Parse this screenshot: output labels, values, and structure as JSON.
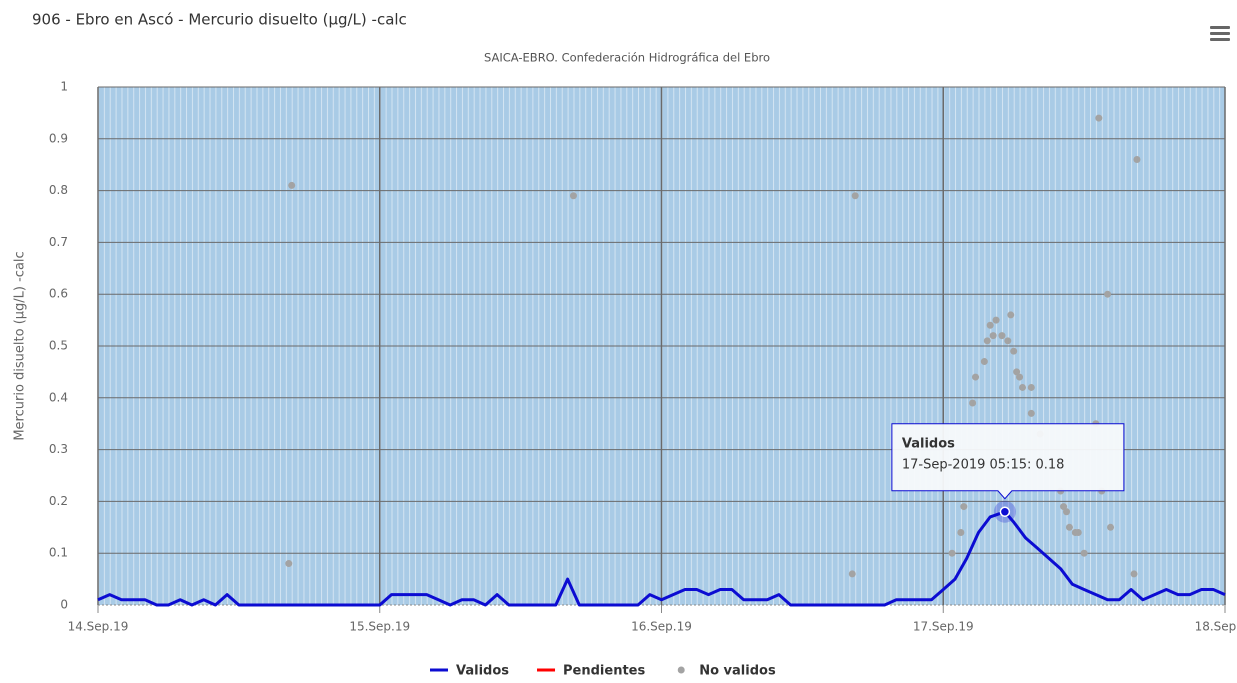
{
  "chart_data": {
    "type": "line",
    "title": "906 - Ebro en Ascó - Mercurio disuelto (µg/L) -calc",
    "subtitle": "SAICA-EBRO. Confederación Hidrográfica del Ebro",
    "y_label": "Mercurio disuelto (µg/L) -calc",
    "xlim": [
      "14-Sep-2019 00:00",
      "18-Sep-2019 00:00"
    ],
    "xticks": [
      {
        "value": "14-Sep-2019 00:00",
        "label": "14.Sep.19"
      },
      {
        "value": "15-Sep-2019 00:00",
        "label": "15.Sep.19"
      },
      {
        "value": "16-Sep-2019 00:00",
        "label": "16.Sep.19"
      },
      {
        "value": "17-Sep-2019 00:00",
        "label": "17.Sep.19"
      },
      {
        "value": "18-Sep-2019 00:00",
        "label": "18.Sep.19"
      }
    ],
    "ylim": [
      0,
      1
    ],
    "yticks": [
      0,
      0.1,
      0.2,
      0.3,
      0.4,
      0.5,
      0.6,
      0.7,
      0.8,
      0.9,
      1
    ],
    "grid": true,
    "legend": "bottom",
    "series": [
      {
        "name": "Validos",
        "type": "line",
        "color": "#0c0cd2",
        "x": [
          "14-Sep-2019 00:00",
          "14-Sep-2019 01:00",
          "14-Sep-2019 02:00",
          "14-Sep-2019 03:00",
          "14-Sep-2019 04:00",
          "14-Sep-2019 05:00",
          "14-Sep-2019 06:00",
          "14-Sep-2019 07:00",
          "14-Sep-2019 08:00",
          "14-Sep-2019 09:00",
          "14-Sep-2019 10:00",
          "14-Sep-2019 11:00",
          "14-Sep-2019 12:00",
          "15-Sep-2019 00:00",
          "15-Sep-2019 01:00",
          "15-Sep-2019 02:00",
          "15-Sep-2019 03:00",
          "15-Sep-2019 04:00",
          "15-Sep-2019 05:00",
          "15-Sep-2019 06:00",
          "15-Sep-2019 07:00",
          "15-Sep-2019 08:00",
          "15-Sep-2019 09:00",
          "15-Sep-2019 10:00",
          "15-Sep-2019 11:00",
          "15-Sep-2019 15:00",
          "15-Sep-2019 16:00",
          "15-Sep-2019 17:00",
          "15-Sep-2019 22:00",
          "15-Sep-2019 23:00",
          "16-Sep-2019 00:00",
          "16-Sep-2019 01:00",
          "16-Sep-2019 02:00",
          "16-Sep-2019 03:00",
          "16-Sep-2019 04:00",
          "16-Sep-2019 05:00",
          "16-Sep-2019 06:00",
          "16-Sep-2019 07:00",
          "16-Sep-2019 08:00",
          "16-Sep-2019 09:00",
          "16-Sep-2019 10:00",
          "16-Sep-2019 11:00",
          "16-Sep-2019 19:00",
          "16-Sep-2019 20:00",
          "16-Sep-2019 21:00",
          "16-Sep-2019 22:00",
          "16-Sep-2019 23:00",
          "17-Sep-2019 00:00",
          "17-Sep-2019 01:00",
          "17-Sep-2019 02:00",
          "17-Sep-2019 03:00",
          "17-Sep-2019 04:00",
          "17-Sep-2019 05:15",
          "17-Sep-2019 06:00",
          "17-Sep-2019 07:00",
          "17-Sep-2019 08:00",
          "17-Sep-2019 09:00",
          "17-Sep-2019 10:00",
          "17-Sep-2019 11:00",
          "17-Sep-2019 12:00",
          "17-Sep-2019 13:00",
          "17-Sep-2019 14:00",
          "17-Sep-2019 15:00",
          "17-Sep-2019 16:00",
          "17-Sep-2019 17:00",
          "17-Sep-2019 18:00",
          "17-Sep-2019 19:00",
          "17-Sep-2019 20:00",
          "17-Sep-2019 21:00",
          "17-Sep-2019 22:00",
          "17-Sep-2019 23:00",
          "18-Sep-2019 00:00"
        ],
        "values": [
          0.01,
          0.02,
          0.01,
          0.01,
          0.01,
          0,
          0,
          0.01,
          0,
          0.01,
          0,
          0.02,
          0,
          0,
          0.02,
          0.02,
          0.02,
          0.02,
          0.01,
          0,
          0.01,
          0.01,
          0,
          0.02,
          0,
          0,
          0.05,
          0,
          0,
          0.02,
          0.01,
          0.02,
          0.03,
          0.03,
          0.02,
          0.03,
          0.03,
          0.01,
          0.01,
          0.01,
          0.02,
          0,
          0,
          0.01,
          0.01,
          0.01,
          0.01,
          0.03,
          0.05,
          0.09,
          0.14,
          0.17,
          0.18,
          0.16,
          0.13,
          0.11,
          0.09,
          0.07,
          0.04,
          0.03,
          0.02,
          0.01,
          0.01,
          0.03,
          0.01,
          0.02,
          0.03,
          0.02,
          0.02,
          0.03,
          0.03,
          0.02
        ]
      },
      {
        "name": "Pendientes",
        "type": "line",
        "color": "#ff0000",
        "x": [],
        "values": []
      },
      {
        "name": "No validos",
        "type": "scatter",
        "color": "#a3a3a3",
        "x": [
          "14-Sep-2019 16:30",
          "14-Sep-2019 16:15",
          "15-Sep-2019 16:30",
          "16-Sep-2019 16:30",
          "16-Sep-2019 16:15",
          "17-Sep-2019 00:45",
          "17-Sep-2019 01:30",
          "17-Sep-2019 01:45",
          "17-Sep-2019 02:30",
          "17-Sep-2019 02:45",
          "17-Sep-2019 03:30",
          "17-Sep-2019 03:45",
          "17-Sep-2019 04:00",
          "17-Sep-2019 04:15",
          "17-Sep-2019 04:30",
          "17-Sep-2019 05:00",
          "17-Sep-2019 05:30",
          "17-Sep-2019 05:45",
          "17-Sep-2019 06:00",
          "17-Sep-2019 06:15",
          "17-Sep-2019 06:30",
          "17-Sep-2019 06:45",
          "17-Sep-2019 07:30",
          "17-Sep-2019 07:30",
          "17-Sep-2019 08:15",
          "17-Sep-2019 10:00",
          "17-Sep-2019 10:15",
          "17-Sep-2019 10:30",
          "17-Sep-2019 10:45",
          "17-Sep-2019 11:15",
          "17-Sep-2019 11:30",
          "17-Sep-2019 12:00",
          "17-Sep-2019 13:00",
          "17-Sep-2019 13:15",
          "17-Sep-2019 13:30",
          "17-Sep-2019 14:00",
          "17-Sep-2019 14:15",
          "17-Sep-2019 16:15",
          "17-Sep-2019 16:30"
        ],
        "values": [
          0.81,
          0.08,
          0.79,
          0.79,
          0.06,
          0.1,
          0.14,
          0.19,
          0.39,
          0.44,
          0.47,
          0.51,
          0.54,
          0.52,
          0.55,
          0.52,
          0.51,
          0.56,
          0.49,
          0.45,
          0.44,
          0.42,
          0.42,
          0.37,
          0.33,
          0.22,
          0.19,
          0.18,
          0.15,
          0.14,
          0.14,
          0.1,
          0.35,
          0.94,
          0.22,
          0.6,
          0.15,
          0.06,
          0.86
        ]
      }
    ],
    "tooltip": {
      "title": "Validos",
      "text": "17-Sep-2019 05:15: 0.18"
    }
  }
}
